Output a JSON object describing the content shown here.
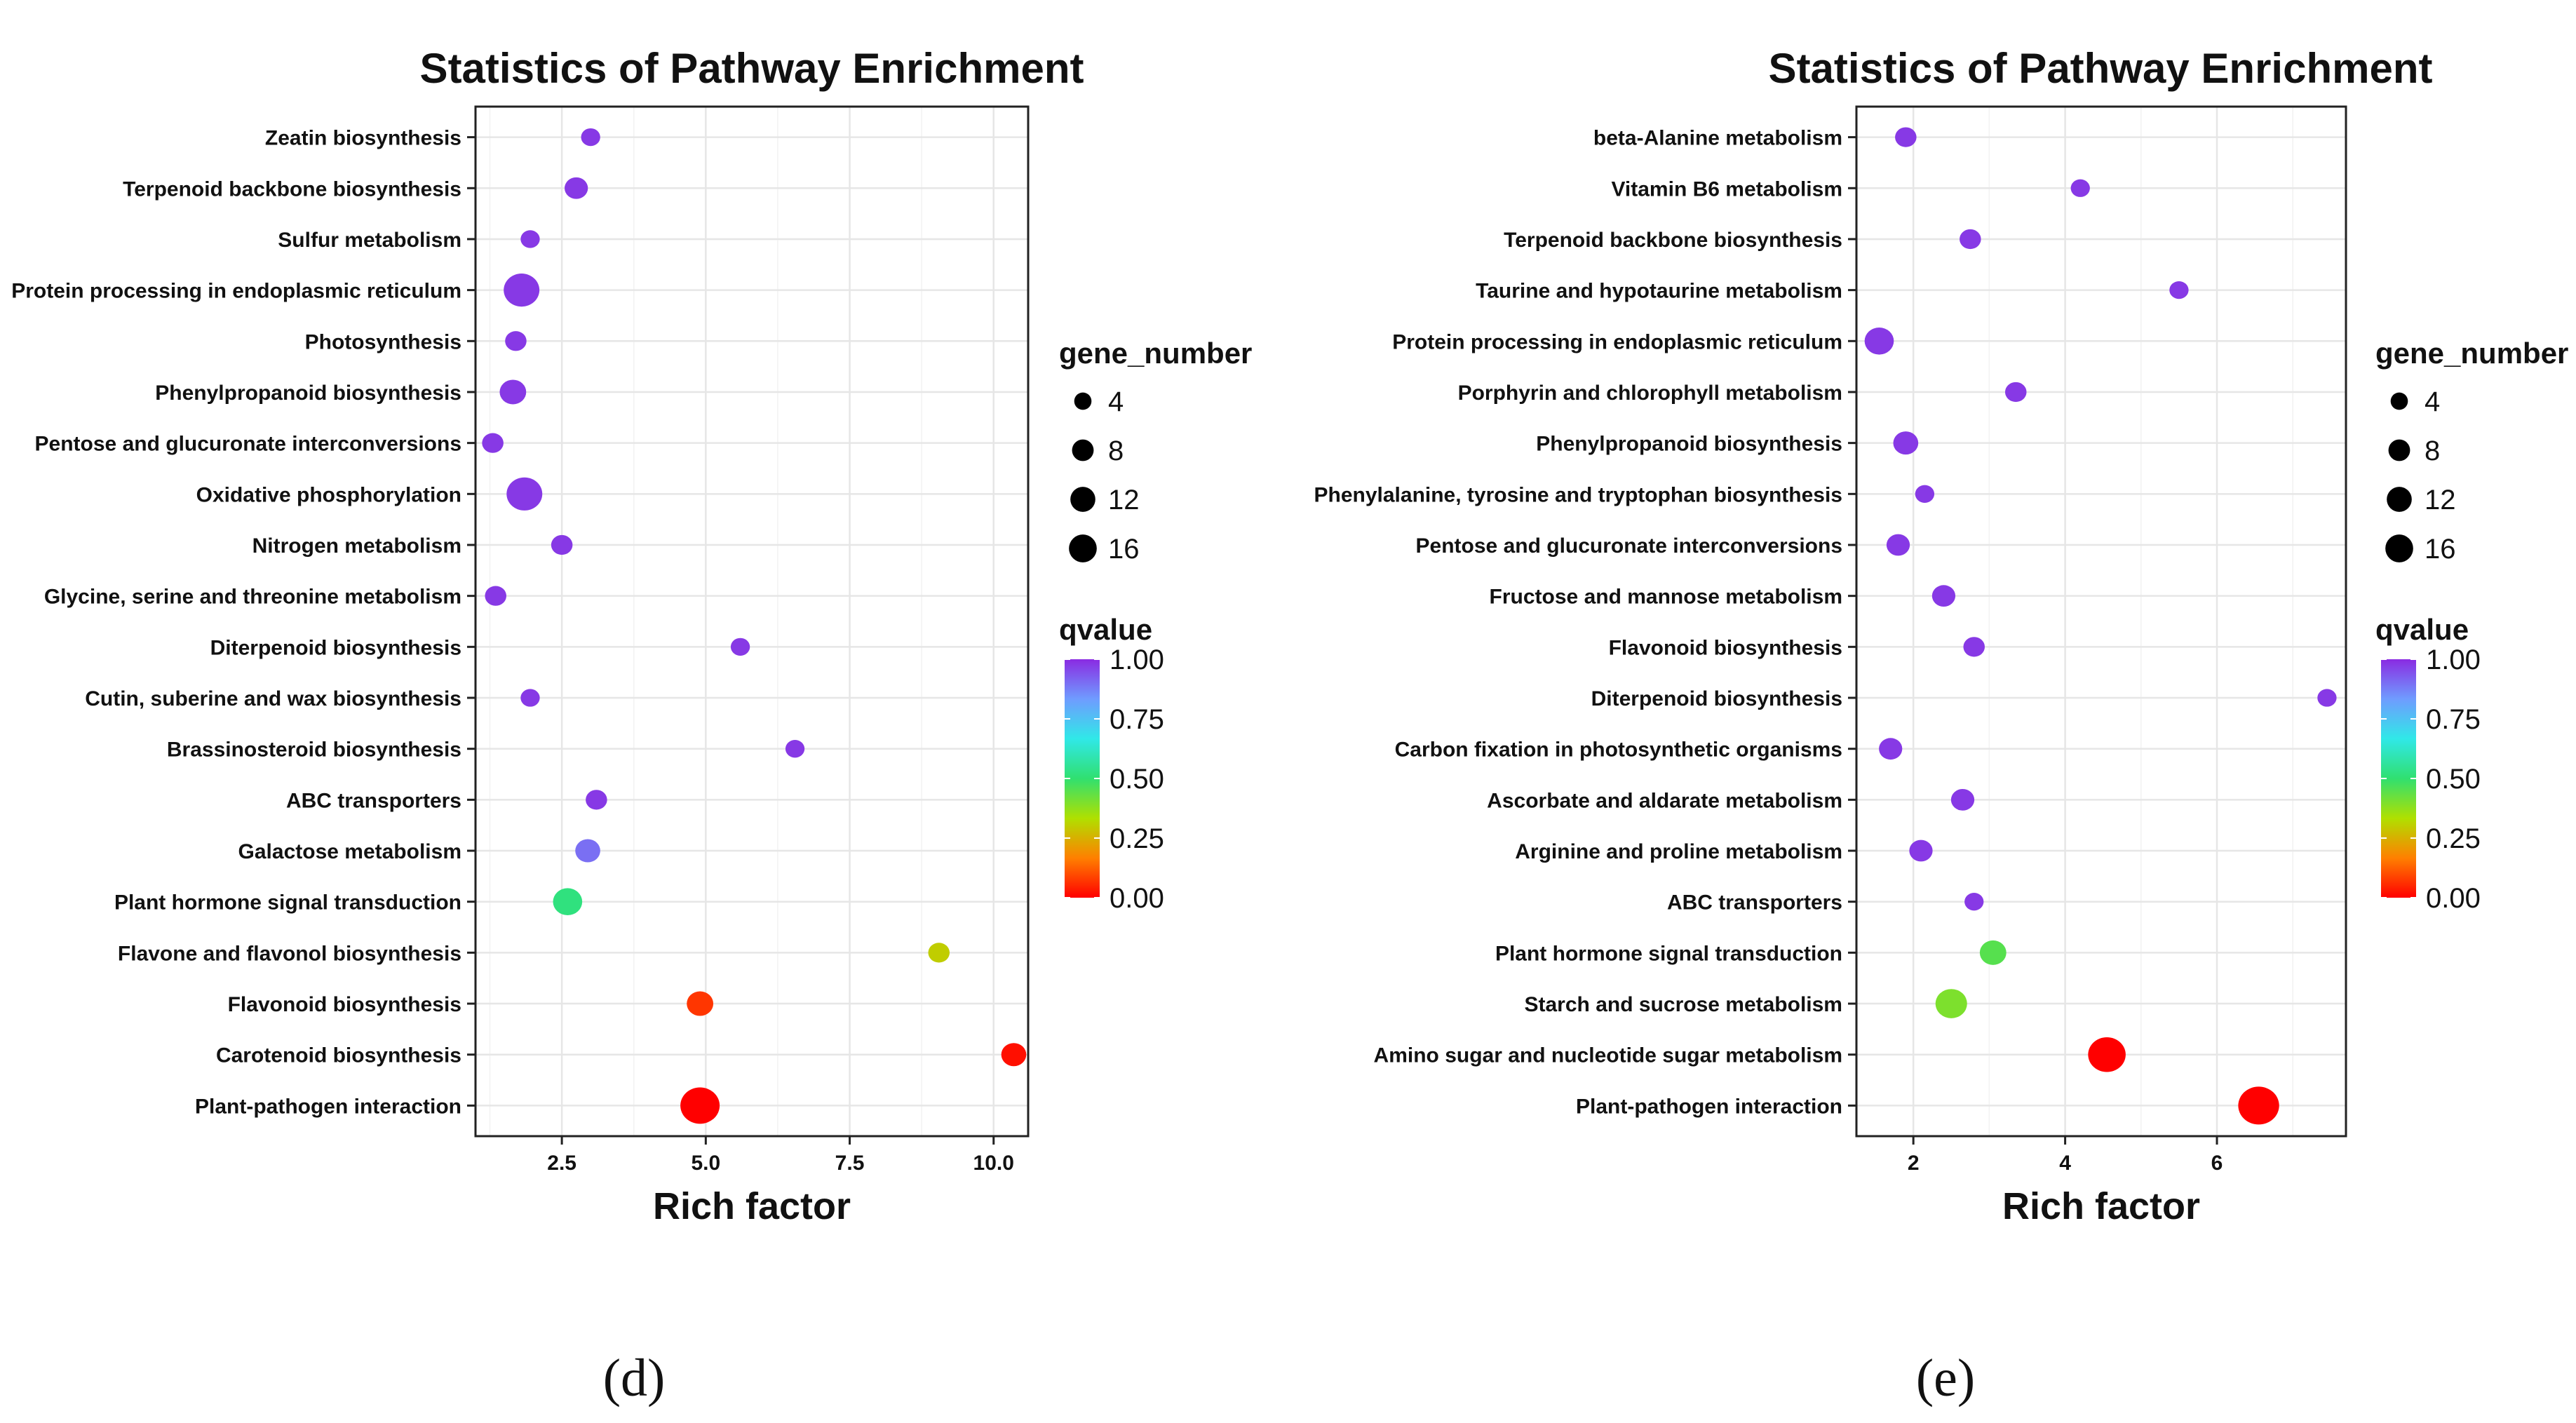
{
  "chart_data": [
    {
      "type": "scatter",
      "panel_label": "(d)",
      "title": "Statistics of Pathway Enrichment",
      "xlabel": "Rich factor",
      "ylabel": "",
      "xlim": [
        1.0,
        10.6
      ],
      "xticks": [
        2.5,
        5.0,
        7.5,
        10.0
      ],
      "xtick_labels": [
        "2.5",
        "5.0",
        "7.5",
        "10.0"
      ],
      "categories": [
        "Zeatin biosynthesis",
        "Terpenoid backbone biosynthesis",
        "Sulfur metabolism",
        "Protein processing in endoplasmic reticulum",
        "Photosynthesis",
        "Phenylpropanoid biosynthesis",
        "Pentose and glucuronate interconversions",
        "Oxidative phosphorylation",
        "Nitrogen metabolism",
        "Glycine, serine and threonine metabolism",
        "Diterpenoid biosynthesis",
        "Cutin, suberine and wax biosynthesis",
        "Brassinosteroid biosynthesis",
        "ABC transporters",
        "Galactose metabolism",
        "Plant hormone signal transduction",
        "Flavone and flavonol biosynthesis",
        "Flavonoid biosynthesis",
        "Carotenoid biosynthesis",
        "Plant-pathogen interaction"
      ],
      "rich_factor": [
        3.0,
        2.75,
        1.95,
        1.8,
        1.7,
        1.65,
        1.3,
        1.85,
        2.5,
        1.35,
        5.6,
        1.95,
        6.55,
        3.1,
        2.95,
        2.6,
        9.05,
        4.9,
        10.35,
        4.9
      ],
      "gene_number": [
        2,
        4,
        2,
        14,
        3,
        6,
        3,
        14,
        3,
        3,
        2,
        2,
        2,
        3,
        5,
        8,
        3,
        6,
        5,
        18
      ],
      "qvalue": [
        0.98,
        0.98,
        0.98,
        0.98,
        0.98,
        0.98,
        0.98,
        0.98,
        0.98,
        0.98,
        0.98,
        0.98,
        0.98,
        0.98,
        0.9,
        0.52,
        0.3,
        0.07,
        0.02,
        0.0
      ],
      "legend": {
        "size_title": "gene_number",
        "size_levels": [
          4,
          8,
          12,
          16
        ],
        "size_labels": [
          "4",
          "8",
          "12",
          "16"
        ],
        "color_title": "qvalue",
        "color_ticks": [
          1.0,
          0.75,
          0.5,
          0.25,
          0.0
        ],
        "color_labels": [
          "1.00",
          "0.75",
          "0.50",
          "0.25",
          "0.00"
        ]
      },
      "colormap": [
        "#ff0000",
        "#ff8000",
        "#b0e000",
        "#30e070",
        "#30e8e8",
        "#6f9cff",
        "#8a2be2"
      ],
      "grid": true
    },
    {
      "type": "scatter",
      "panel_label": "(e)",
      "title": "Statistics of Pathway Enrichment",
      "xlabel": "Rich factor",
      "ylabel": "",
      "xlim": [
        1.25,
        7.7
      ],
      "xticks": [
        2,
        4,
        6
      ],
      "xtick_labels": [
        "2",
        "4",
        "6"
      ],
      "categories": [
        "beta-Alanine metabolism",
        "Vitamin B6 metabolism",
        "Terpenoid backbone biosynthesis",
        "Taurine and hypotaurine metabolism",
        "Protein processing in endoplasmic reticulum",
        "Porphyrin and chlorophyll metabolism",
        "Phenylpropanoid biosynthesis",
        "Phenylalanine, tyrosine and tryptophan biosynthesis",
        "Pentose and glucuronate interconversions",
        "Fructose and mannose metabolism",
        "Flavonoid biosynthesis",
        "Diterpenoid biosynthesis",
        "Carbon fixation in photosynthetic organisms",
        "Ascorbate and aldarate metabolism",
        "Arginine and proline metabolism",
        "ABC transporters",
        "Plant hormone signal transduction",
        "Starch and sucrose metabolism",
        "Amino sugar and nucleotide sugar metabolism",
        "Plant-pathogen interaction"
      ],
      "rich_factor": [
        1.9,
        4.2,
        2.75,
        5.5,
        1.55,
        3.35,
        1.9,
        2.15,
        1.8,
        2.4,
        2.8,
        7.45,
        1.7,
        2.65,
        2.1,
        2.8,
        3.05,
        2.5,
        4.55,
        6.55
      ],
      "gene_number": [
        3,
        2,
        3,
        2,
        8,
        3,
        5,
        2,
        4,
        4,
        3,
        2,
        4,
        4,
        4,
        2,
        6,
        10,
        16,
        20
      ],
      "qvalue": [
        0.98,
        0.98,
        0.98,
        0.98,
        0.98,
        0.98,
        0.98,
        0.98,
        0.98,
        0.98,
        0.98,
        0.98,
        0.98,
        0.98,
        0.98,
        0.98,
        0.45,
        0.4,
        0.0,
        0.0
      ],
      "legend": {
        "size_title": "gene_number",
        "size_levels": [
          4,
          8,
          12,
          16
        ],
        "size_labels": [
          "4",
          "8",
          "12",
          "16"
        ],
        "color_title": "qvalue",
        "color_ticks": [
          1.0,
          0.75,
          0.5,
          0.25,
          0.0
        ],
        "color_labels": [
          "1.00",
          "0.75",
          "0.50",
          "0.25",
          "0.00"
        ]
      },
      "colormap": [
        "#ff0000",
        "#ff8000",
        "#b0e000",
        "#30e070",
        "#30e8e8",
        "#6f9cff",
        "#8a2be2"
      ],
      "grid": true
    }
  ]
}
